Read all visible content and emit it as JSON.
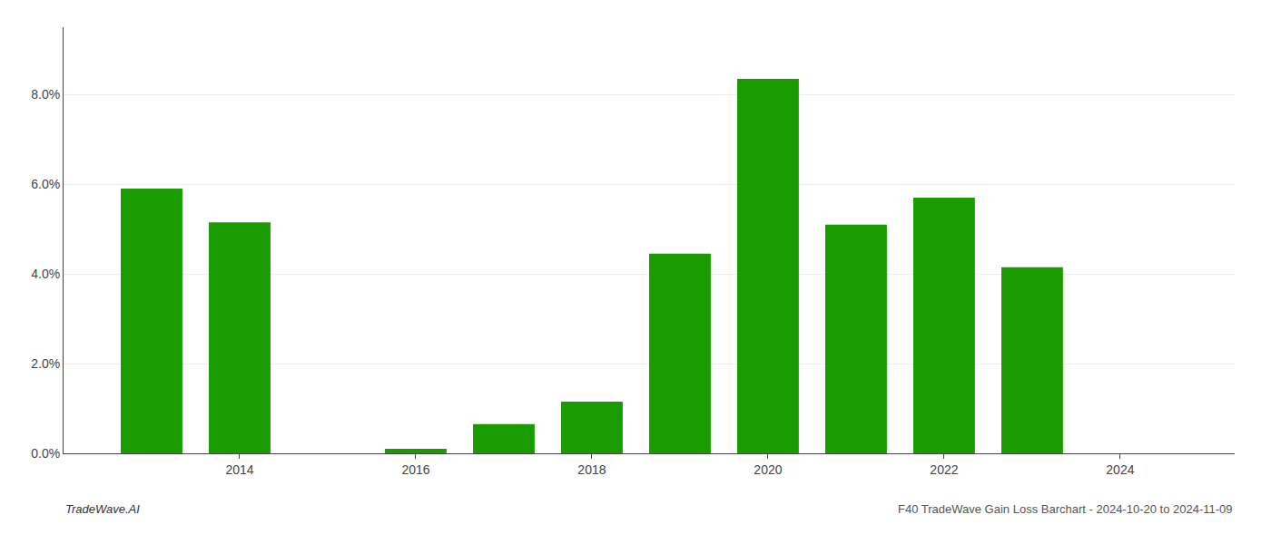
{
  "chart_data": {
    "type": "bar",
    "x": [
      2013,
      2014,
      2015,
      2016,
      2017,
      2018,
      2019,
      2020,
      2021,
      2022,
      2023,
      2024
    ],
    "values": [
      0.059,
      0.0515,
      null,
      0.001,
      0.0065,
      0.0115,
      0.0445,
      0.0835,
      0.051,
      0.057,
      0.0415,
      null
    ],
    "color": "#1a9c00",
    "xlim": [
      2012.0,
      2025.3
    ],
    "xticks": [
      2014,
      2016,
      2018,
      2020,
      2022,
      2024
    ],
    "ylim": [
      0,
      0.095
    ],
    "yticks": [
      {
        "value": 0.0,
        "label": "0.0%"
      },
      {
        "value": 0.02,
        "label": "2.0%"
      },
      {
        "value": 0.04,
        "label": "4.0%"
      },
      {
        "value": 0.06,
        "label": "6.0%"
      },
      {
        "value": 0.08,
        "label": "8.0%"
      }
    ],
    "grid": "y",
    "annotations": [
      {
        "text": "TradeWave.AI"
      },
      {
        "text": "F40 TradeWave Gain Loss Barchart - 2024-10-20 to 2024-11-09"
      }
    ]
  }
}
